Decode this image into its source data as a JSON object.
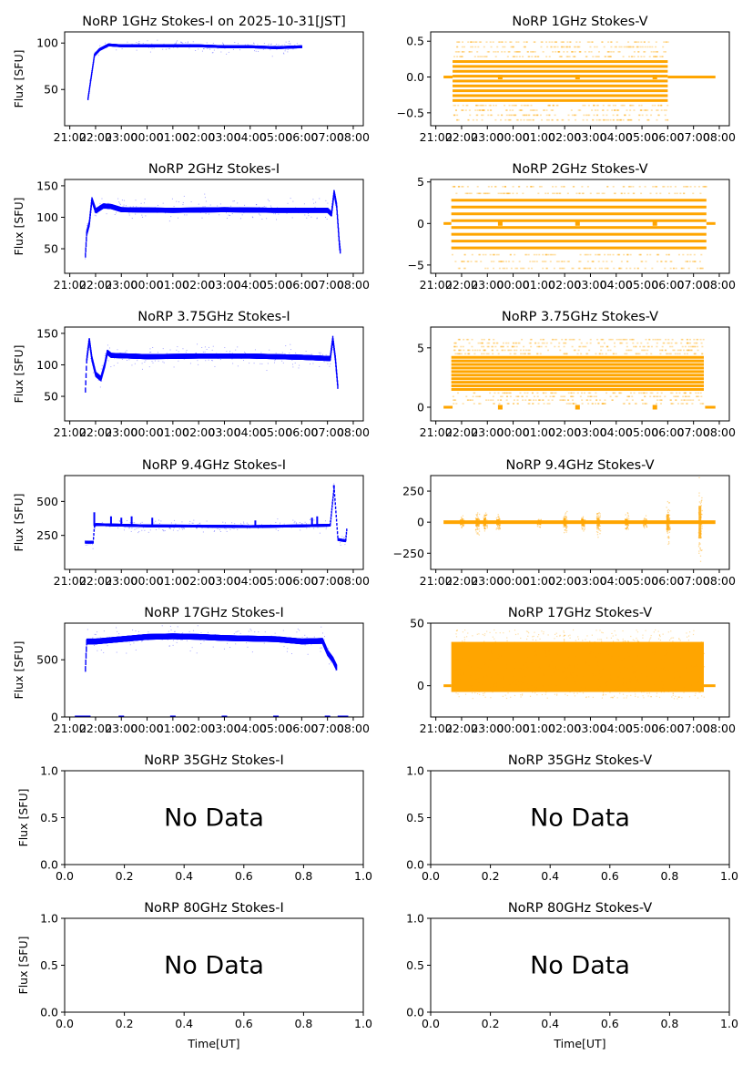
{
  "figure": {
    "xlabel": "Time[UT]",
    "ylabel": "Flux [SFU]",
    "no_data_text": "No Data",
    "colors": {
      "stokes_i": "#0000ff",
      "stokes_v": "#ffa500",
      "axes": "#000000"
    }
  },
  "chart_data": [
    {
      "id": "1ghz-i",
      "type": "scatter",
      "title": "NoRP 1GHz Stokes-I on 2025-10-31[JST]",
      "ylabel": "Flux [SFU]",
      "xlabel": "",
      "has_data": true,
      "stokes": "I",
      "xlim_hours": [
        20.8,
        32.39
      ],
      "ylim": [
        11,
        112
      ],
      "xticks": [
        "21:00",
        "22:00",
        "23:00",
        "00:00",
        "01:00",
        "02:00",
        "03:00",
        "04:00",
        "05:00",
        "06:00",
        "07:00",
        "08:00"
      ],
      "yticks": [
        {
          "v": 50,
          "label": "50"
        },
        {
          "v": 100,
          "label": "100"
        }
      ],
      "profile": [
        [
          21.7,
          40
        ],
        [
          21.95,
          87
        ],
        [
          22.15,
          93
        ],
        [
          22.5,
          98
        ],
        [
          23.0,
          97
        ],
        [
          24.0,
          97
        ],
        [
          25.0,
          97
        ],
        [
          26.0,
          97
        ],
        [
          27.0,
          96
        ],
        [
          28.0,
          96
        ],
        [
          29.0,
          95
        ],
        [
          30.0,
          96
        ]
      ],
      "noise": 1.5
    },
    {
      "id": "1ghz-v",
      "type": "scatter",
      "title": "NoRP 1GHz Stokes-V",
      "ylabel": "",
      "xlabel": "",
      "has_data": true,
      "stokes": "V",
      "xlim_hours": [
        20.8,
        32.39
      ],
      "ylim": [
        -0.68,
        0.63
      ],
      "xticks": [
        "21:00",
        "22:00",
        "23:00",
        "00:00",
        "01:00",
        "02:00",
        "03:00",
        "04:00",
        "05:00",
        "06:00",
        "07:00",
        "08:00"
      ],
      "yticks": [
        {
          "v": -0.5,
          "label": "−0.5"
        },
        {
          "v": 0,
          "label": "0.0"
        },
        {
          "v": 0.5,
          "label": "0.5"
        }
      ],
      "active_range": [
        21.65,
        30.0
      ],
      "zero_ranges": [
        [
          21.3,
          21.65
        ],
        [
          30.0,
          31.85
        ]
      ],
      "step": 0.068,
      "dense_levels": [
        -0.33,
        0.27
      ],
      "sparse_levels": [
        -0.6,
        0.55
      ],
      "zero_markers": [
        23.5,
        26.5,
        29.5
      ]
    },
    {
      "id": "2ghz-i",
      "type": "scatter",
      "title": "NoRP 2GHz Stokes-I",
      "ylabel": "Flux [SFU]",
      "xlabel": "",
      "has_data": true,
      "stokes": "I",
      "xlim_hours": [
        20.8,
        32.39
      ],
      "ylim": [
        11,
        160
      ],
      "xticks": [
        "21:00",
        "22:00",
        "23:00",
        "00:00",
        "01:00",
        "02:00",
        "03:00",
        "04:00",
        "05:00",
        "06:00",
        "07:00",
        "08:00"
      ],
      "yticks": [
        {
          "v": 50,
          "label": "50"
        },
        {
          "v": 100,
          "label": "100"
        },
        {
          "v": 150,
          "label": "150"
        }
      ],
      "profile": [
        [
          21.6,
          40
        ],
        [
          21.65,
          75
        ],
        [
          21.75,
          90
        ],
        [
          21.85,
          128
        ],
        [
          22.0,
          110
        ],
        [
          22.3,
          118
        ],
        [
          22.6,
          117
        ],
        [
          23.0,
          112
        ],
        [
          25.0,
          111
        ],
        [
          27.0,
          112
        ],
        [
          29.0,
          111
        ],
        [
          31.0,
          111
        ],
        [
          31.15,
          105
        ],
        [
          31.25,
          140
        ],
        [
          31.35,
          118
        ],
        [
          31.45,
          60
        ],
        [
          31.5,
          42
        ]
      ],
      "noise": 4
    },
    {
      "id": "2ghz-v",
      "type": "scatter",
      "title": "NoRP 2GHz Stokes-V",
      "ylabel": "",
      "xlabel": "",
      "has_data": true,
      "stokes": "V",
      "xlim_hours": [
        20.8,
        32.39
      ],
      "ylim": [
        -6.0,
        5.3
      ],
      "xticks": [
        "21:00",
        "22:00",
        "23:00",
        "00:00",
        "01:00",
        "02:00",
        "03:00",
        "04:00",
        "05:00",
        "06:00",
        "07:00",
        "08:00"
      ],
      "yticks": [
        {
          "v": -5,
          "label": "−5"
        },
        {
          "v": 0,
          "label": "0"
        },
        {
          "v": 5,
          "label": "5"
        }
      ],
      "active_range": [
        21.6,
        31.5
      ],
      "zero_ranges": [
        [
          21.3,
          21.6
        ],
        [
          31.5,
          31.85
        ]
      ],
      "step": 0.82,
      "dense_levels": [
        -3.7,
        3.0
      ],
      "sparse_levels": [
        -5.4,
        4.5
      ],
      "zero_markers": [
        23.5,
        26.5,
        29.5
      ]
    },
    {
      "id": "375ghz-i",
      "type": "scatter",
      "title": "NoRP 3.75GHz Stokes-I",
      "ylabel": "Flux [SFU]",
      "xlabel": "",
      "has_data": true,
      "stokes": "I",
      "xlim_hours": [
        20.8,
        32.39
      ],
      "ylim": [
        11,
        160
      ],
      "xticks": [
        "21:00",
        "22:00",
        "23:00",
        "00:00",
        "01:00",
        "02:00",
        "03:00",
        "04:00",
        "05:00",
        "06:00",
        "07:00",
        "08:00"
      ],
      "yticks": [
        {
          "v": 50,
          "label": "50"
        },
        {
          "v": 100,
          "label": "100"
        },
        {
          "v": 150,
          "label": "150"
        }
      ],
      "profile": [
        [
          21.6,
          60
        ],
        [
          21.65,
          108
        ],
        [
          21.75,
          140
        ],
        [
          21.85,
          110
        ],
        [
          22.0,
          85
        ],
        [
          22.2,
          78
        ],
        [
          22.35,
          100
        ],
        [
          22.45,
          120
        ],
        [
          22.6,
          115
        ],
        [
          24.0,
          113
        ],
        [
          26.0,
          114
        ],
        [
          28.0,
          114
        ],
        [
          30.0,
          112
        ],
        [
          31.1,
          110
        ],
        [
          31.2,
          142
        ],
        [
          31.3,
          110
        ],
        [
          31.4,
          62
        ]
      ],
      "noise": 4
    },
    {
      "id": "375ghz-v",
      "type": "scatter",
      "title": "NoRP 3.75GHz Stokes-V",
      "ylabel": "",
      "xlabel": "",
      "has_data": true,
      "stokes": "V",
      "xlim_hours": [
        20.8,
        32.39
      ],
      "ylim": [
        -1.15,
        6.75
      ],
      "xticks": [
        "21:00",
        "22:00",
        "23:00",
        "00:00",
        "01:00",
        "02:00",
        "03:00",
        "04:00",
        "05:00",
        "06:00",
        "07:00",
        "08:00"
      ],
      "yticks": [
        {
          "v": 0,
          "label": "0"
        },
        {
          "v": 5,
          "label": "5"
        }
      ],
      "active_range": [
        21.6,
        31.4
      ],
      "zero_ranges": [
        [
          21.3,
          21.65
        ],
        [
          31.45,
          31.85
        ]
      ],
      "step": 0.3,
      "dense_levels": [
        1.4,
        4.3
      ],
      "sparse_levels": [
        0.3,
        5.8
      ],
      "zero_markers": [
        23.5,
        26.5,
        29.5
      ]
    },
    {
      "id": "94ghz-i",
      "type": "scatter",
      "title": "NoRP 9.4GHz Stokes-I",
      "ylabel": "Flux [SFU]",
      "xlabel": "",
      "has_data": true,
      "stokes": "I",
      "xlim_hours": [
        20.8,
        32.39
      ],
      "ylim": [
        0,
        690
      ],
      "xticks": [
        "21:00",
        "22:00",
        "23:00",
        "00:00",
        "01:00",
        "02:00",
        "03:00",
        "04:00",
        "05:00",
        "06:00",
        "07:00",
        "08:00"
      ],
      "yticks": [
        {
          "v": 250,
          "label": "250"
        },
        {
          "v": 500,
          "label": "500"
        }
      ],
      "profile": [
        [
          21.6,
          200
        ],
        [
          21.9,
          200
        ],
        [
          21.95,
          320
        ],
        [
          22.0,
          330
        ],
        [
          24.0,
          320
        ],
        [
          26.0,
          318
        ],
        [
          28.0,
          315
        ],
        [
          30.0,
          320
        ],
        [
          31.1,
          325
        ],
        [
          31.25,
          600
        ],
        [
          31.4,
          220
        ],
        [
          31.7,
          210
        ],
        [
          31.75,
          310
        ]
      ],
      "noise": 10,
      "spikes": [
        [
          21.95,
          420
        ],
        [
          22.6,
          390
        ],
        [
          23.0,
          380
        ],
        [
          23.4,
          390
        ],
        [
          24.2,
          380
        ],
        [
          28.2,
          360
        ],
        [
          30.4,
          380
        ],
        [
          30.6,
          390
        ],
        [
          31.25,
          620
        ]
      ]
    },
    {
      "id": "94ghz-v",
      "type": "scatter",
      "title": "NoRP 9.4GHz Stokes-V",
      "ylabel": "",
      "xlabel": "",
      "has_data": true,
      "stokes": "V",
      "xlim_hours": [
        20.8,
        32.39
      ],
      "ylim": [
        -380,
        375
      ],
      "xticks": [
        "21:00",
        "22:00",
        "23:00",
        "00:00",
        "01:00",
        "02:00",
        "03:00",
        "04:00",
        "05:00",
        "06:00",
        "07:00",
        "08:00"
      ],
      "yticks": [
        {
          "v": -250,
          "label": "−250"
        },
        {
          "v": 0,
          "label": "0"
        },
        {
          "v": 250,
          "label": "250"
        }
      ],
      "active_range": [
        21.3,
        31.85
      ],
      "bursts": [
        [
          22.0,
          40
        ],
        [
          22.6,
          80
        ],
        [
          22.9,
          80
        ],
        [
          23.4,
          60
        ],
        [
          25.0,
          30
        ],
        [
          26.0,
          80
        ],
        [
          26.7,
          60
        ],
        [
          27.3,
          90
        ],
        [
          28.4,
          60
        ],
        [
          29.1,
          40
        ],
        [
          30.0,
          160
        ],
        [
          31.25,
          330
        ]
      ],
      "noise": 6
    },
    {
      "id": "17ghz-i",
      "type": "scatter",
      "title": "NoRP 17GHz Stokes-I",
      "ylabel": "Flux [SFU]",
      "xlabel": "",
      "has_data": true,
      "stokes": "I",
      "xlim_hours": [
        20.8,
        32.39
      ],
      "ylim": [
        0,
        820
      ],
      "xticks": [
        "21:00",
        "22:00",
        "23:00",
        "00:00",
        "01:00",
        "02:00",
        "03:00",
        "04:00",
        "05:00",
        "06:00",
        "07:00",
        "08:00"
      ],
      "yticks": [
        {
          "v": 0,
          "label": "0"
        },
        {
          "v": 500,
          "label": "500"
        }
      ],
      "profile": [
        [
          21.6,
          420
        ],
        [
          21.65,
          660
        ],
        [
          22.0,
          660
        ],
        [
          23.0,
          680
        ],
        [
          24.0,
          700
        ],
        [
          25.0,
          705
        ],
        [
          26.0,
          700
        ],
        [
          27.0,
          690
        ],
        [
          28.0,
          685
        ],
        [
          29.0,
          680
        ],
        [
          30.0,
          660
        ],
        [
          30.8,
          665
        ],
        [
          31.0,
          560
        ],
        [
          31.2,
          500
        ],
        [
          31.35,
          430
        ]
      ],
      "noise": 25,
      "zero_markers": [
        21.3,
        21.5,
        21.7,
        23.0,
        25.0,
        27.0,
        29.0,
        31.0,
        31.5,
        31.7
      ]
    },
    {
      "id": "17ghz-v",
      "type": "scatter",
      "title": "NoRP 17GHz Stokes-V",
      "ylabel": "",
      "xlabel": "",
      "has_data": true,
      "stokes": "V",
      "xlim_hours": [
        20.8,
        32.39
      ],
      "ylim": [
        -25,
        50
      ],
      "xticks": [
        "21:00",
        "22:00",
        "23:00",
        "00:00",
        "01:00",
        "02:00",
        "03:00",
        "04:00",
        "05:00",
        "06:00",
        "07:00",
        "08:00"
      ],
      "yticks": [
        {
          "v": 0,
          "label": "0"
        },
        {
          "v": 50,
          "label": "50"
        }
      ],
      "active_range": [
        21.6,
        31.4
      ],
      "zero_ranges": [
        [
          21.3,
          21.6
        ],
        [
          31.4,
          31.85
        ]
      ],
      "band": [
        -5,
        35
      ],
      "outliers": [
        -20,
        47
      ]
    },
    {
      "id": "35ghz-i",
      "type": "empty",
      "title": "NoRP 35GHz Stokes-I",
      "ylabel": "Flux [SFU]",
      "xlabel": "",
      "has_data": false,
      "xlim": [
        0,
        1
      ],
      "ylim": [
        0,
        1
      ],
      "xticks": [
        "0.0",
        "0.2",
        "0.4",
        "0.6",
        "0.8",
        "1.0"
      ],
      "yticks_labels": [
        "0.0",
        "0.5",
        "1.0"
      ]
    },
    {
      "id": "35ghz-v",
      "type": "empty",
      "title": "NoRP 35GHz Stokes-V",
      "ylabel": "",
      "xlabel": "",
      "has_data": false,
      "xlim": [
        0,
        1
      ],
      "ylim": [
        0,
        1
      ],
      "xticks": [
        "0.0",
        "0.2",
        "0.4",
        "0.6",
        "0.8",
        "1.0"
      ],
      "yticks_labels": [
        "0.0",
        "0.5",
        "1.0"
      ]
    },
    {
      "id": "80ghz-i",
      "type": "empty",
      "title": "NoRP 80GHz Stokes-I",
      "ylabel": "Flux [SFU]",
      "xlabel": "Time[UT]",
      "has_data": false,
      "xlim": [
        0,
        1
      ],
      "ylim": [
        0,
        1
      ],
      "xticks": [
        "0.0",
        "0.2",
        "0.4",
        "0.6",
        "0.8",
        "1.0"
      ],
      "yticks_labels": [
        "0.0",
        "0.5",
        "1.0"
      ]
    },
    {
      "id": "80ghz-v",
      "type": "empty",
      "title": "NoRP 80GHz Stokes-V",
      "ylabel": "",
      "xlabel": "Time[UT]",
      "has_data": false,
      "xlim": [
        0,
        1
      ],
      "ylim": [
        0,
        1
      ],
      "xticks": [
        "0.0",
        "0.2",
        "0.4",
        "0.6",
        "0.8",
        "1.0"
      ],
      "yticks_labels": [
        "0.0",
        "0.5",
        "1.0"
      ]
    }
  ]
}
